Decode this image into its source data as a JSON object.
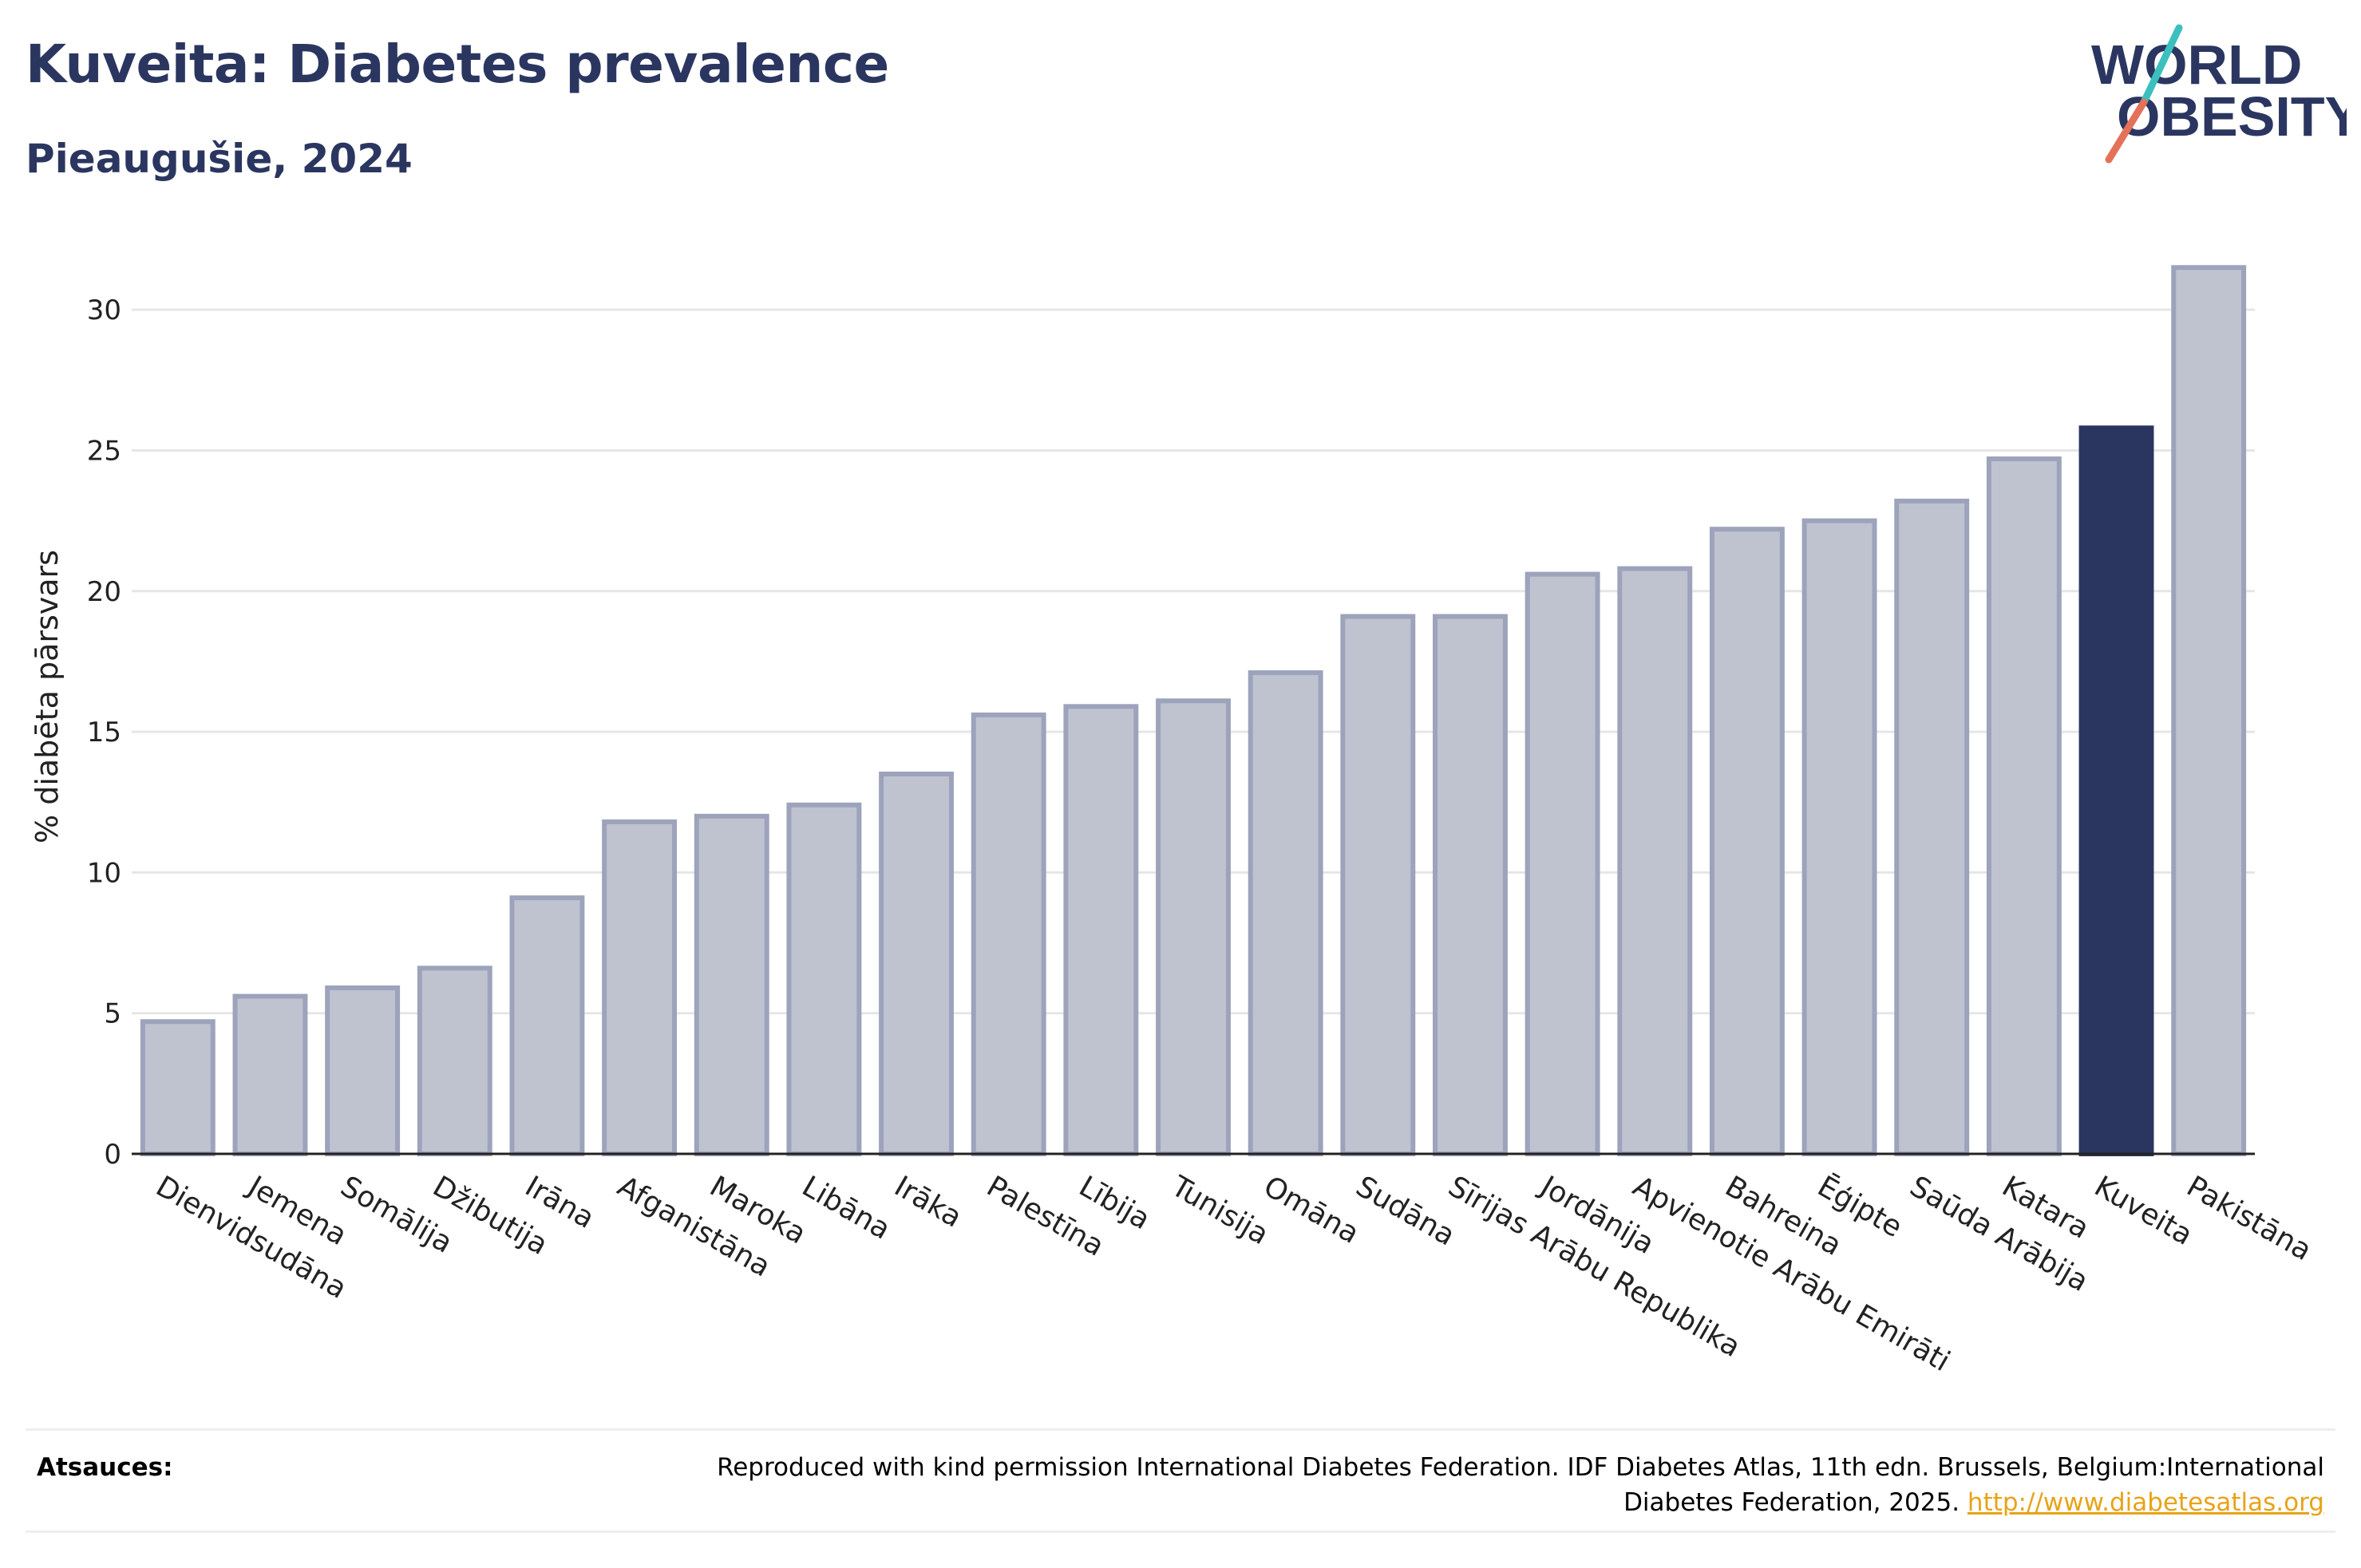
{
  "header": {
    "title": "Kuveita: Diabetes prevalence",
    "subtitle": "Pieaugušie, 2024",
    "logo_line1": "WORLD",
    "logo_line2": "OBESITY"
  },
  "chart_data": {
    "type": "bar",
    "ylabel": "% diabēta pārsvars",
    "ylim": [
      0,
      32.5
    ],
    "yticks": [
      0,
      5,
      10,
      15,
      20,
      25,
      30
    ],
    "grid": true,
    "highlight": "Kuveita",
    "categories": [
      "Dienvidsudāna",
      "Jemena",
      "Somālija",
      "Džibutija",
      "Irāna",
      "Afganistāna",
      "Maroka",
      "Libāna",
      "Irāka",
      "Palestīna",
      "Lībija",
      "Tunisija",
      "Omāna",
      "Sudāna",
      "Sīrijas Arābu Republika",
      "Jordānija",
      "Apvienotie Arābu Emirāti",
      "Bahreina",
      "Ēģipte",
      "Saūda Arābija",
      "Katara",
      "Kuveita",
      "Pakistāna"
    ],
    "values": [
      4.7,
      5.6,
      5.9,
      6.6,
      9.1,
      11.8,
      12.0,
      12.4,
      13.5,
      15.6,
      15.9,
      16.1,
      17.1,
      19.1,
      19.1,
      20.6,
      20.8,
      22.2,
      22.5,
      23.2,
      24.7,
      25.8,
      31.5
    ]
  },
  "colors": {
    "bar_fill": "#bfc3d0",
    "bar_stroke": "#9da3bb",
    "highlight_fill": "#2b3660",
    "logo_slash_teal": "#3cbfbf",
    "logo_slash_coral": "#e5715a",
    "link": "#e8a317"
  },
  "footer": {
    "label": "Atsauces:",
    "text": "Reproduced with kind permission International Diabetes Federation. IDF Diabetes Atlas, 11th edn. Brussels, Belgium:International Diabetes Federation, 2025.",
    "link": "http://www.diabetesatlas.org"
  }
}
